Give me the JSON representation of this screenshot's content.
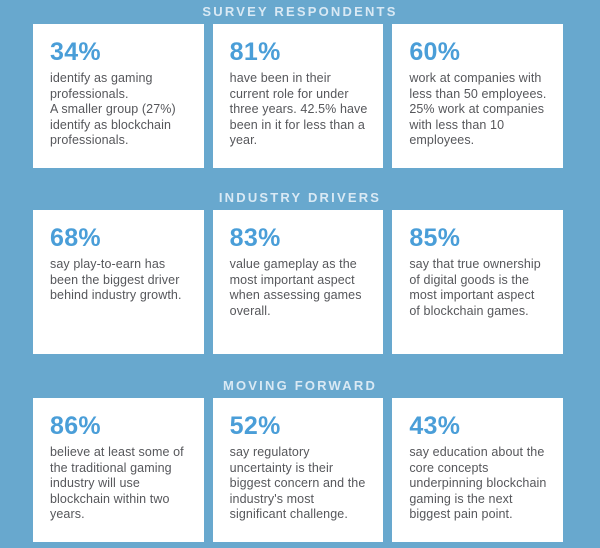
{
  "theme": {
    "background_color": "#68A8CE",
    "card_background_color": "#FFFFFF",
    "stat_color": "#4A9ED8",
    "body_text_color": "#56575B",
    "section_title_color": "#D9E9F4"
  },
  "sections": [
    {
      "title": "SURVEY RESPONDENTS",
      "cards": [
        {
          "stat": "34%",
          "text": "identify as gaming professionals.\nA smaller group (27%) identify as blockchain professionals."
        },
        {
          "stat": "81%",
          "text": "have been in their current role for under three years. 42.5% have been in it for less than a year."
        },
        {
          "stat": "60%",
          "text": "work at companies with less than 50 employees. 25% work at companies with less than 10 employees."
        }
      ]
    },
    {
      "title": "INDUSTRY DRIVERS",
      "cards": [
        {
          "stat": "68%",
          "text": "say play-to-earn has been the biggest driver behind industry growth."
        },
        {
          "stat": "83%",
          "text": "value gameplay as the most important aspect when assessing games overall."
        },
        {
          "stat": "85%",
          "text": "say that true ownership of digital goods is the most important aspect of blockchain games."
        }
      ]
    },
    {
      "title": "MOVING FORWARD",
      "cards": [
        {
          "stat": "86%",
          "text": "believe at least some of the traditional gaming industry will use blockchain within two years."
        },
        {
          "stat": "52%",
          "text": "say regulatory uncertainty is their biggest concern and the industry's most significant challenge."
        },
        {
          "stat": "43%",
          "text": "say education about the core concepts underpinning blockchain gaming is the next biggest pain point."
        }
      ]
    }
  ]
}
